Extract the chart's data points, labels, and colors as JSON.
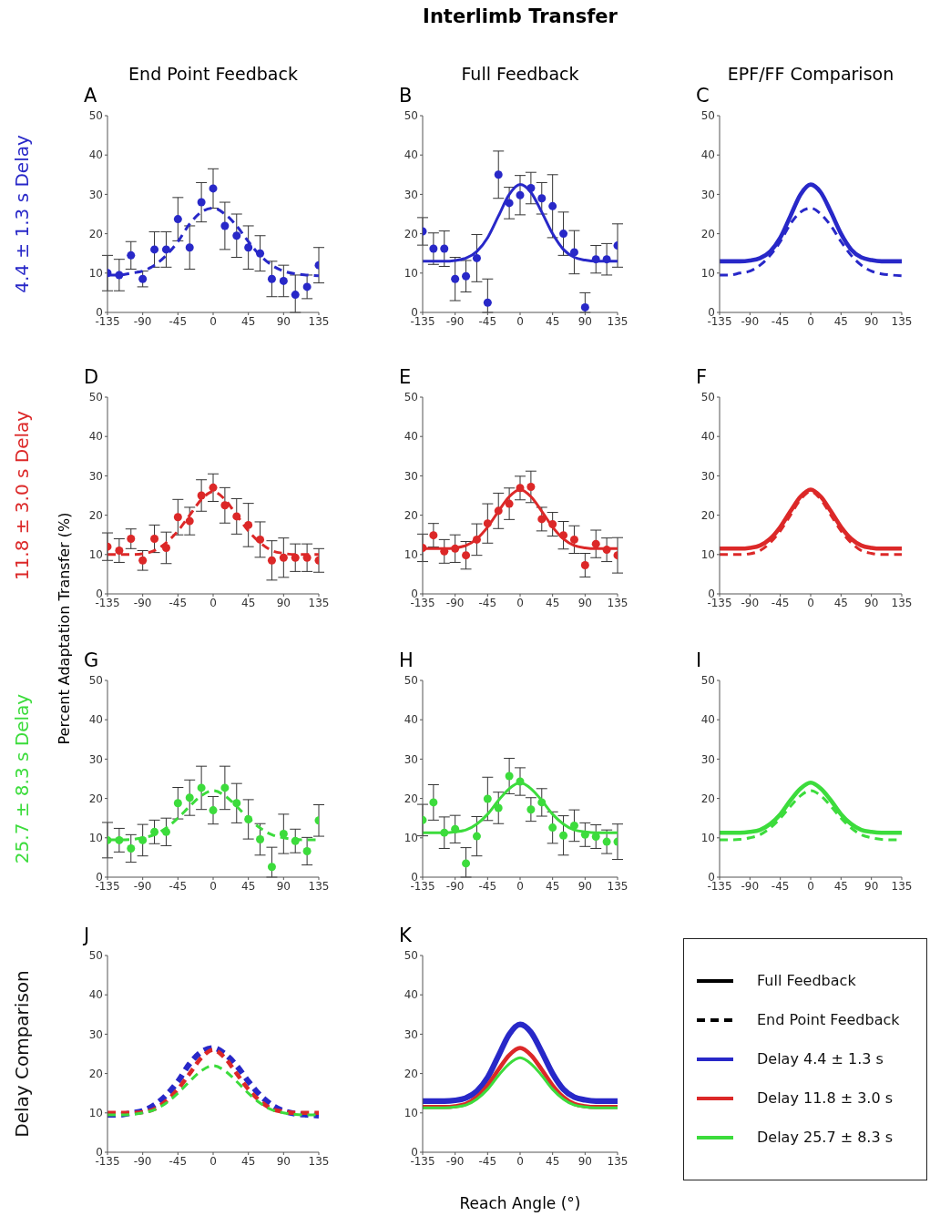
{
  "chart_data": [
    {
      "type": "line",
      "title": "A",
      "subtitle": "End Point Feedback",
      "ylabel": "4.4 ± 1.3 s Delay",
      "x": [
        -135,
        -120,
        -105,
        -90,
        -75,
        -60,
        -45,
        -30,
        -15,
        0,
        15,
        30,
        45,
        60,
        75,
        90,
        105,
        120,
        135
      ],
      "xlim": [
        -135,
        135
      ],
      "xticks": [
        -135,
        -90,
        -45,
        0,
        45,
        90,
        135
      ],
      "ylim": [
        0,
        50
      ],
      "yticks": [
        0,
        10,
        20,
        30,
        40,
        50
      ],
      "series": [
        {
          "type": "scatter",
          "marker": "circle",
          "color": "#2828c8",
          "values": [
            10,
            9.5,
            14.5,
            8.5,
            16,
            16,
            23.7,
            16.5,
            28,
            31.5,
            22,
            19.5,
            16.5,
            15,
            8.5,
            8,
            4.5,
            6.5,
            12
          ],
          "errors": [
            4.5,
            4,
            3.5,
            2,
            4.5,
            4.5,
            5.5,
            5.5,
            5,
            5,
            6,
            5.5,
            5.5,
            4.5,
            4.5,
            4,
            [
              0,
              9.5
            ],
            3,
            4.5
          ]
        },
        {
          "type": "line",
          "line_style": "dashed",
          "color": "#2828c8",
          "values": [
            9.5,
            9.5,
            10,
            10.5,
            12,
            14.5,
            18,
            22.5,
            25.5,
            26.5,
            25,
            22,
            18,
            14.5,
            12,
            10.5,
            9.8,
            9.5,
            9.3
          ]
        }
      ]
    },
    {
      "type": "line",
      "title": "B",
      "subtitle": "Full Feedback",
      "annotations": [
        "Interlimb Transfer"
      ],
      "x": [
        -135,
        -120,
        -105,
        -90,
        -75,
        -60,
        -45,
        -30,
        -15,
        0,
        15,
        30,
        45,
        60,
        75,
        90,
        105,
        120,
        135
      ],
      "xlim": [
        -135,
        135
      ],
      "xticks": [
        -135,
        -90,
        -45,
        0,
        45,
        90,
        135
      ],
      "ylim": [
        0,
        50
      ],
      "yticks": [
        0,
        10,
        20,
        30,
        40,
        50
      ],
      "series": [
        {
          "type": "scatter",
          "marker": "circle",
          "color": "#2828c8",
          "values": [
            20.6,
            16.2,
            16.2,
            8.5,
            9.2,
            13.8,
            2.5,
            35,
            27.8,
            29.8,
            31.6,
            29,
            27,
            20,
            15.3,
            1.3,
            13.5,
            13.5,
            17
          ],
          "errors": [
            3.5,
            4,
            4.5,
            5.5,
            4,
            6,
            [
              0,
              8.5
            ],
            6,
            4,
            5,
            4,
            4,
            8,
            5.5,
            5.5,
            [
              0,
              5
            ],
            3.5,
            4,
            5.5
          ]
        },
        {
          "type": "line",
          "line_style": "solid",
          "color": "#2828c8",
          "values": [
            13,
            13,
            13,
            13.2,
            13.8,
            15.5,
            19,
            24.5,
            30,
            32.5,
            30.5,
            25.5,
            20,
            16,
            14,
            13.3,
            13,
            13,
            13
          ]
        }
      ]
    },
    {
      "type": "line",
      "title": "C",
      "subtitle": "EPF/FF Comparison",
      "x": [
        -135,
        -120,
        -105,
        -90,
        -75,
        -60,
        -45,
        -30,
        -15,
        0,
        15,
        30,
        45,
        60,
        75,
        90,
        105,
        120,
        135
      ],
      "xlim": [
        -135,
        135
      ],
      "xticks": [
        -135,
        -90,
        -45,
        0,
        45,
        90,
        135
      ],
      "ylim": [
        0,
        50
      ],
      "yticks": [
        0,
        10,
        20,
        30,
        40,
        50
      ],
      "series": [
        {
          "type": "line",
          "line_style": "solid",
          "color": "#2828c8",
          "values": [
            13,
            13,
            13,
            13.2,
            13.8,
            15.5,
            19,
            24.5,
            30,
            32.5,
            30.5,
            25.5,
            20,
            16,
            14,
            13.3,
            13,
            13,
            13
          ]
        },
        {
          "type": "line",
          "line_style": "dashed",
          "color": "#2828c8",
          "values": [
            9.5,
            9.5,
            10,
            10.5,
            12,
            14.5,
            18,
            22.5,
            25.5,
            26.5,
            25,
            22,
            18,
            14.5,
            12,
            10.5,
            9.8,
            9.5,
            9.3
          ]
        }
      ]
    },
    {
      "type": "line",
      "title": "D",
      "ylabel": "11.8 ± 3.0 s Delay",
      "x": [
        -135,
        -120,
        -105,
        -90,
        -75,
        -60,
        -45,
        -30,
        -15,
        0,
        15,
        30,
        45,
        60,
        75,
        90,
        105,
        120,
        135
      ],
      "xlim": [
        -135,
        135
      ],
      "xticks": [
        -135,
        -90,
        -45,
        0,
        45,
        90,
        135
      ],
      "ylim": [
        0,
        50
      ],
      "yticks": [
        0,
        10,
        20,
        30,
        40,
        50
      ],
      "series": [
        {
          "type": "scatter",
          "marker": "circle",
          "color": "#dc2828",
          "values": [
            12,
            11,
            14,
            8.5,
            14,
            11.7,
            19.5,
            18.5,
            25,
            27,
            22.5,
            19.7,
            17.5,
            13.8,
            8.5,
            9.2,
            9.2,
            9.2,
            8.5
          ],
          "errors": [
            3.5,
            3,
            2.5,
            2.5,
            3.5,
            4,
            4.5,
            3.5,
            4,
            3.5,
            4.5,
            4.5,
            5.5,
            4.5,
            5,
            5,
            3.5,
            3.5,
            3
          ]
        },
        {
          "type": "line",
          "line_style": "dashed",
          "color": "#dc2828",
          "values": [
            10,
            10,
            10,
            10.2,
            11,
            13,
            16,
            20,
            24,
            26,
            24,
            20,
            16,
            13,
            11,
            10.3,
            10,
            10,
            10
          ]
        }
      ]
    },
    {
      "type": "line",
      "title": "E",
      "x": [
        -135,
        -120,
        -105,
        -90,
        -75,
        -60,
        -45,
        -30,
        -15,
        0,
        15,
        30,
        45,
        60,
        75,
        90,
        105,
        120,
        135
      ],
      "xlim": [
        -135,
        135
      ],
      "xticks": [
        -135,
        -90,
        -45,
        0,
        45,
        90,
        135
      ],
      "ylim": [
        0,
        50
      ],
      "yticks": [
        0,
        10,
        20,
        30,
        40,
        50
      ],
      "series": [
        {
          "type": "scatter",
          "marker": "circle",
          "color": "#dc2828",
          "values": [
            11.7,
            14.9,
            10.8,
            11.5,
            9.8,
            13.8,
            17.9,
            21.1,
            22.9,
            26.9,
            27.2,
            19,
            17.7,
            14.9,
            13.8,
            7.3,
            12.7,
            11.2,
            9.8
          ],
          "errors": [
            3.5,
            3,
            3,
            3.5,
            3.5,
            4,
            5,
            4.5,
            4,
            3,
            4,
            3,
            3,
            3.5,
            3.5,
            3,
            3.5,
            3,
            4.5
          ]
        },
        {
          "type": "line",
          "line_style": "solid",
          "color": "#dc2828",
          "values": [
            11.5,
            11.5,
            11.5,
            11.7,
            12.3,
            14,
            17,
            21,
            24.7,
            26.5,
            24.7,
            21,
            17,
            14,
            12.3,
            11.7,
            11.5,
            11.5,
            11.5
          ]
        }
      ]
    },
    {
      "type": "line",
      "title": "F",
      "x": [
        -135,
        -120,
        -105,
        -90,
        -75,
        -60,
        -45,
        -30,
        -15,
        0,
        15,
        30,
        45,
        60,
        75,
        90,
        105,
        120,
        135
      ],
      "xlim": [
        -135,
        135
      ],
      "xticks": [
        -135,
        -90,
        -45,
        0,
        45,
        90,
        135
      ],
      "ylim": [
        0,
        50
      ],
      "yticks": [
        0,
        10,
        20,
        30,
        40,
        50
      ],
      "series": [
        {
          "type": "line",
          "line_style": "solid",
          "color": "#dc2828",
          "values": [
            11.5,
            11.5,
            11.5,
            11.7,
            12.3,
            14,
            17,
            21,
            24.7,
            26.5,
            24.7,
            21,
            17,
            14,
            12.3,
            11.7,
            11.5,
            11.5,
            11.5
          ]
        },
        {
          "type": "line",
          "line_style": "dashed",
          "color": "#dc2828",
          "values": [
            10,
            10,
            10,
            10.2,
            11,
            13,
            16,
            20,
            24,
            26,
            24,
            20,
            16,
            13,
            11,
            10.3,
            10,
            10,
            10
          ]
        }
      ]
    },
    {
      "type": "line",
      "title": "G",
      "ylabel": "25.7 ± 8.3 s Delay",
      "annotations": [
        "Percent Adaptation Transfer (%)"
      ],
      "x": [
        -135,
        -120,
        -105,
        -90,
        -75,
        -60,
        -45,
        -30,
        -15,
        0,
        15,
        30,
        45,
        60,
        75,
        90,
        105,
        120,
        135
      ],
      "xlim": [
        -135,
        135
      ],
      "xticks": [
        -135,
        -90,
        -45,
        0,
        45,
        90,
        135
      ],
      "ylim": [
        0,
        50
      ],
      "yticks": [
        0,
        10,
        20,
        30,
        40,
        50
      ],
      "series": [
        {
          "type": "scatter",
          "marker": "circle",
          "color": "#3cdc3c",
          "values": [
            9.4,
            9.4,
            7.3,
            9.4,
            11.5,
            11.5,
            18.8,
            20.2,
            22.7,
            17,
            22.7,
            18.8,
            14.7,
            9.6,
            2.6,
            11,
            9.2,
            6.6,
            14.4
          ],
          "errors": [
            4.5,
            3,
            3.5,
            4,
            3,
            3.5,
            4,
            4.5,
            5.5,
            3.5,
            5.5,
            5,
            5,
            4,
            [
              0,
              7.6
            ],
            5,
            3,
            3.5,
            4
          ]
        },
        {
          "type": "line",
          "line_style": "dashed",
          "color": "#3cdc3c",
          "values": [
            9.5,
            9.5,
            9.6,
            10,
            10.8,
            12.5,
            15,
            18,
            20.7,
            22,
            20.7,
            18,
            15,
            12.5,
            10.8,
            10,
            9.6,
            9.5,
            9.5
          ]
        }
      ]
    },
    {
      "type": "line",
      "title": "H",
      "x": [
        -135,
        -120,
        -105,
        -90,
        -75,
        -60,
        -45,
        -30,
        -15,
        0,
        15,
        30,
        45,
        60,
        75,
        90,
        105,
        120,
        135
      ],
      "xlim": [
        -135,
        135
      ],
      "xticks": [
        -135,
        -90,
        -45,
        0,
        45,
        90,
        135
      ],
      "ylim": [
        0,
        50
      ],
      "yticks": [
        0,
        10,
        20,
        30,
        40,
        50
      ],
      "series": [
        {
          "type": "scatter",
          "marker": "circle",
          "color": "#3cdc3c",
          "values": [
            14.5,
            19,
            11.3,
            12.2,
            3.5,
            10.4,
            19.9,
            17.6,
            25.7,
            24.3,
            17.2,
            19,
            12.6,
            10.6,
            13.1,
            10.8,
            10.3,
            9,
            9
          ],
          "errors": [
            4,
            4.5,
            4,
            3.5,
            [
              0,
              7.5
            ],
            5,
            5.5,
            4,
            4.5,
            3.5,
            3,
            3.5,
            4,
            5,
            4,
            3,
            3,
            3,
            4.5
          ]
        },
        {
          "type": "line",
          "line_style": "solid",
          "color": "#3cdc3c",
          "values": [
            11.3,
            11.3,
            11.3,
            11.5,
            12,
            13.5,
            16,
            19.5,
            22.5,
            24,
            22.5,
            19.5,
            16,
            13.5,
            12,
            11.5,
            11.3,
            11.3,
            11.3
          ]
        }
      ]
    },
    {
      "type": "line",
      "title": "I",
      "x": [
        -135,
        -120,
        -105,
        -90,
        -75,
        -60,
        -45,
        -30,
        -15,
        0,
        15,
        30,
        45,
        60,
        75,
        90,
        105,
        120,
        135
      ],
      "xlim": [
        -135,
        135
      ],
      "xticks": [
        -135,
        -90,
        -45,
        0,
        45,
        90,
        135
      ],
      "ylim": [
        0,
        50
      ],
      "yticks": [
        0,
        10,
        20,
        30,
        40,
        50
      ],
      "series": [
        {
          "type": "line",
          "line_style": "solid",
          "color": "#3cdc3c",
          "values": [
            11.3,
            11.3,
            11.3,
            11.5,
            12,
            13.5,
            16,
            19.5,
            22.5,
            24,
            22.5,
            19.5,
            16,
            13.5,
            12,
            11.5,
            11.3,
            11.3,
            11.3
          ]
        },
        {
          "type": "line",
          "line_style": "dashed",
          "color": "#3cdc3c",
          "values": [
            9.5,
            9.5,
            9.6,
            10,
            10.8,
            12.5,
            15,
            18,
            20.7,
            22,
            20.7,
            18,
            15,
            12.5,
            10.8,
            10,
            9.6,
            9.5,
            9.5
          ]
        }
      ]
    },
    {
      "type": "line",
      "title": "J",
      "ylabel": "Delay Comparison",
      "x": [
        -135,
        -120,
        -105,
        -90,
        -75,
        -60,
        -45,
        -30,
        -15,
        0,
        15,
        30,
        45,
        60,
        75,
        90,
        105,
        120,
        135
      ],
      "xlim": [
        -135,
        135
      ],
      "xticks": [
        -135,
        -90,
        -45,
        0,
        45,
        90,
        135
      ],
      "ylim": [
        0,
        50
      ],
      "yticks": [
        0,
        10,
        20,
        30,
        40,
        50
      ],
      "series": [
        {
          "type": "line",
          "line_style": "dashed",
          "color": "#2828c8",
          "values": [
            9.5,
            9.5,
            10,
            10.5,
            12,
            14.5,
            18,
            22.5,
            25.5,
            26.5,
            25,
            22,
            18,
            14.5,
            12,
            10.5,
            9.8,
            9.5,
            9.3
          ]
        },
        {
          "type": "line",
          "line_style": "dashed",
          "color": "#dc2828",
          "values": [
            10,
            10,
            10,
            10.2,
            11,
            13,
            16,
            20,
            24,
            26,
            24,
            20,
            16,
            13,
            11,
            10.3,
            10,
            10,
            10
          ]
        },
        {
          "type": "line",
          "line_style": "dashed",
          "color": "#3cdc3c",
          "values": [
            9.5,
            9.5,
            9.6,
            10,
            10.8,
            12.5,
            15,
            18,
            20.7,
            22,
            20.7,
            18,
            15,
            12.5,
            10.8,
            10,
            9.6,
            9.5,
            9.5
          ]
        }
      ]
    },
    {
      "type": "line",
      "title": "K",
      "xlabel": "Reach Angle (°)",
      "x": [
        -135,
        -120,
        -105,
        -90,
        -75,
        -60,
        -45,
        -30,
        -15,
        0,
        15,
        30,
        45,
        60,
        75,
        90,
        105,
        120,
        135
      ],
      "xlim": [
        -135,
        135
      ],
      "xticks": [
        -135,
        -90,
        -45,
        0,
        45,
        90,
        135
      ],
      "ylim": [
        0,
        50
      ],
      "yticks": [
        0,
        10,
        20,
        30,
        40,
        50
      ],
      "series": [
        {
          "type": "line",
          "line_style": "solid",
          "color": "#2828c8",
          "values": [
            13,
            13,
            13,
            13.2,
            13.8,
            15.5,
            19,
            24.5,
            30,
            32.5,
            30.5,
            25.5,
            20,
            16,
            14,
            13.3,
            13,
            13,
            13
          ]
        },
        {
          "type": "line",
          "line_style": "solid",
          "color": "#dc2828",
          "values": [
            11.5,
            11.5,
            11.5,
            11.7,
            12.3,
            14,
            17,
            21,
            24.7,
            26.5,
            24.7,
            21,
            17,
            14,
            12.3,
            11.7,
            11.5,
            11.5,
            11.5
          ]
        },
        {
          "type": "line",
          "line_style": "solid",
          "color": "#3cdc3c",
          "values": [
            11.3,
            11.3,
            11.3,
            11.5,
            12,
            13.5,
            16,
            19.5,
            22.5,
            24,
            22.5,
            19.5,
            16,
            13.5,
            12,
            11.5,
            11.3,
            11.3,
            11.3
          ]
        }
      ]
    },
    {
      "type": "other",
      "series": [
        {
          "name": "Full Feedback",
          "color": "#000000",
          "line_style": "solid"
        },
        {
          "name": "End Point Feedback",
          "color": "#000000",
          "line_style": "dashed"
        },
        {
          "name": "Delay 4.4 ± 1.3 s",
          "color": "#2828c8",
          "line_style": "solid"
        },
        {
          "name": "Delay 11.8 ± 3.0 s",
          "color": "#dc2828",
          "line_style": "solid"
        },
        {
          "name": "Delay 25.7 ± 8.3 s",
          "color": "#3cdc3c",
          "line_style": "solid"
        }
      ]
    }
  ]
}
